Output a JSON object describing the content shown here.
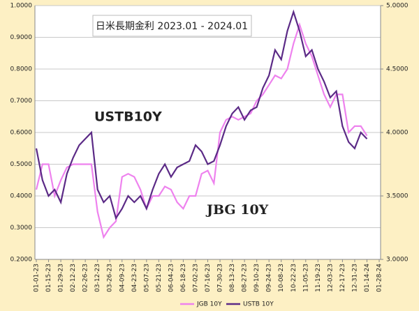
{
  "chart_data": {
    "type": "line",
    "title": "日米長期金利 2023.01 - 2024.01",
    "annotations": [
      "USTB10Y",
      "JBG 10Y"
    ],
    "x": [
      "01-01-23",
      "01-08-23",
      "01-15-23",
      "01-22-23",
      "01-29-23",
      "02-05-23",
      "02-12-23",
      "02-19-23",
      "02-26-23",
      "03-05-23",
      "03-12-23",
      "03-19-23",
      "03-26-23",
      "04-02-23",
      "04-09-23",
      "04-16-23",
      "04-23-23",
      "04-30-23",
      "05-07-23",
      "05-14-23",
      "05-21-23",
      "05-28-23",
      "06-04-23",
      "06-11-23",
      "06-18-23",
      "06-25-23",
      "07-02-23",
      "07-09-23",
      "07-16-23",
      "07-23-23",
      "07-30-23",
      "08-06-23",
      "08-13-23",
      "08-20-23",
      "08-27-23",
      "09-03-23",
      "09-10-23",
      "09-17-23",
      "09-24-23",
      "10-01-23",
      "10-08-23",
      "10-15-23",
      "10-22-23",
      "10-29-23",
      "11-05-23",
      "11-12-23",
      "11-19-23",
      "11-26-23",
      "12-03-23",
      "12-10-23",
      "12-17-23",
      "12-24-23",
      "12-31-23",
      "01-07-24",
      "01-14-24"
    ],
    "series": [
      {
        "name": "JGB 10Y",
        "color": "#ee82ee",
        "axis": "y",
        "values": [
          0.42,
          0.5,
          0.5,
          0.4,
          0.45,
          0.49,
          0.5,
          0.5,
          0.5,
          0.5,
          0.35,
          0.27,
          0.3,
          0.32,
          0.46,
          0.47,
          0.46,
          0.42,
          0.36,
          0.4,
          0.4,
          0.43,
          0.42,
          0.38,
          0.36,
          0.4,
          0.4,
          0.47,
          0.48,
          0.44,
          0.6,
          0.64,
          0.65,
          0.64,
          0.65,
          0.66,
          0.7,
          0.72,
          0.75,
          0.78,
          0.77,
          0.8,
          0.88,
          0.94,
          0.88,
          0.84,
          0.78,
          0.72,
          0.68,
          0.72,
          0.72,
          0.6,
          0.62,
          0.62,
          0.59
        ]
      },
      {
        "name": "USTB 10Y",
        "color": "#5b2a86",
        "axis": "y2",
        "values": [
          3.875,
          3.625,
          3.5,
          3.55,
          3.45,
          3.675,
          3.8,
          3.9,
          3.95,
          4.0,
          3.55,
          3.45,
          3.5,
          3.325,
          3.4,
          3.5,
          3.45,
          3.5,
          3.4,
          3.55,
          3.675,
          3.75,
          3.65,
          3.725,
          3.75,
          3.775,
          3.9,
          3.85,
          3.75,
          3.775,
          3.9,
          4.05,
          4.15,
          4.2,
          4.1,
          4.175,
          4.2,
          4.35,
          4.45,
          4.65,
          4.575,
          4.8,
          4.95,
          4.8,
          4.6,
          4.65,
          4.5,
          4.4,
          4.275,
          4.325,
          4.05,
          3.925,
          3.875,
          4.0,
          3.95
        ]
      }
    ],
    "xlim": [
      "01-01-23",
      "01-28-24"
    ],
    "xticks": [
      "01-01-23",
      "01-15-23",
      "01-29-23",
      "02-12-23",
      "02-26-23",
      "03-12-23",
      "03-26-23",
      "04-09-23",
      "04-23-23",
      "05-07-23",
      "05-21-23",
      "06-04-23",
      "06-18-23",
      "07-02-23",
      "07-16-23",
      "07-30-23",
      "08-13-23",
      "08-27-23",
      "09-10-23",
      "09-24-23",
      "10-08-23",
      "10-22-23",
      "11-05-23",
      "11-19-23",
      "12-03-23",
      "12-17-23",
      "12-31-23",
      "01-14-24",
      "01-28-24"
    ],
    "ylim": [
      0.2,
      1.0
    ],
    "yticks": [
      {
        "value": 0.2,
        "label": "0.2000"
      },
      {
        "value": 0.3,
        "label": "0.3000"
      },
      {
        "value": 0.4,
        "label": "0.4000"
      },
      {
        "value": 0.5,
        "label": "0.5000"
      },
      {
        "value": 0.6,
        "label": "0.6000"
      },
      {
        "value": 0.7,
        "label": "0.7000"
      },
      {
        "value": 0.8,
        "label": "0.8000"
      },
      {
        "value": 0.9,
        "label": "0.9000"
      },
      {
        "value": 1.0,
        "label": "1.0000"
      }
    ],
    "y2lim": [
      3.0,
      5.0
    ],
    "y2ticks": [
      {
        "value": 3.0,
        "label": "3.0000"
      },
      {
        "value": 3.5,
        "label": "3.5000"
      },
      {
        "value": 4.0,
        "label": "4.0000"
      },
      {
        "value": 4.5,
        "label": "4.5000"
      },
      {
        "value": 5.0,
        "label": "5.0000"
      }
    ],
    "grid": true,
    "legend": "bottom"
  }
}
